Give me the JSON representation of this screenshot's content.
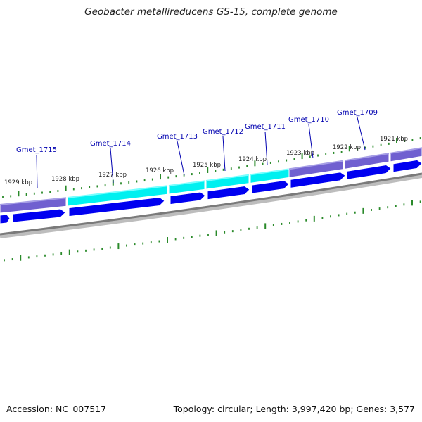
{
  "title": "Geobacter metallireducens GS-15, complete genome",
  "footer": {
    "accession": "Accession: NC_007517",
    "summary": "Topology: circular; Length: 3,997,420 bp; Genes: 3,577"
  },
  "colors": {
    "gene_label": "#0000b0",
    "highlight_gene": "#00f0f0",
    "gene_bar": "#7060d0",
    "cds_arrow": "#0000f0",
    "tick": "#2a8a2a",
    "backbone": "#7a7a7a"
  },
  "ruler_labels": [
    "1929 kbp",
    "1928 kbp",
    "1927 kbp",
    "1926 kbp",
    "1925 kbp",
    "1924 kbp",
    "1923 kbp",
    "1922 kbp",
    "1921 kbp"
  ],
  "gene_labels": [
    "Gmet_1715",
    "Gmet_1714",
    "Gmet_1713",
    "Gmet_1712",
    "Gmet_1711",
    "Gmet_1710",
    "Gmet_1709"
  ]
}
